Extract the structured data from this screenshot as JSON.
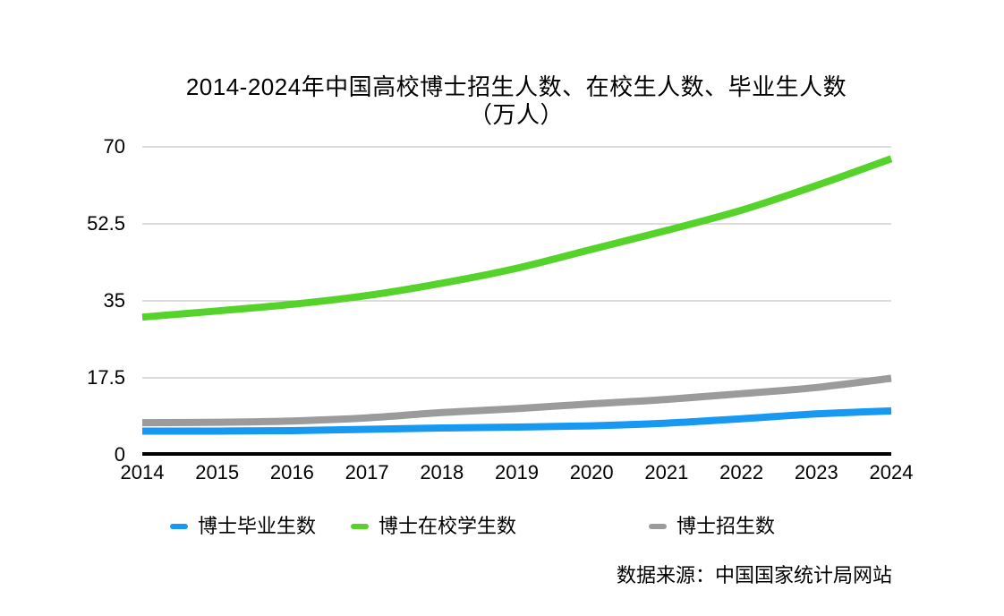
{
  "chart_data": {
    "type": "line",
    "title": "2014-2024年中国高校博士招生人数、在校生人数、毕业生人数",
    "subtitle": "（万人）",
    "x": [
      "2014",
      "2015",
      "2016",
      "2017",
      "2018",
      "2019",
      "2020",
      "2021",
      "2022",
      "2023",
      "2024"
    ],
    "xlabel": "",
    "ylabel": "",
    "ylim": [
      0,
      70
    ],
    "yticks": [
      70,
      52.5,
      35,
      17.5,
      0
    ],
    "ytick_labels": [
      "70",
      "52.5",
      "35",
      "17.5",
      "0"
    ],
    "grid": true,
    "legend_position": "bottom",
    "series": [
      {
        "name": "博士毕业生数",
        "color": "#1799F2",
        "values": [
          5.4,
          5.4,
          5.5,
          5.8,
          6.1,
          6.3,
          6.6,
          7.2,
          8.2,
          9.3,
          10.0
        ]
      },
      {
        "name": "博士在校学生数",
        "color": "#55D32B",
        "values": [
          31.3,
          32.7,
          34.2,
          36.2,
          39.0,
          42.4,
          46.7,
          51.0,
          55.6,
          61.2,
          67.3
        ]
      },
      {
        "name": "博士招生数",
        "color": "#9B9B9B",
        "values": [
          7.3,
          7.4,
          7.7,
          8.4,
          9.6,
          10.5,
          11.6,
          12.6,
          13.9,
          15.3,
          17.4
        ]
      }
    ],
    "source": "数据来源：中国国家统计局网站",
    "colors": {
      "grid": "#C8C8C8",
      "axis": "#000000",
      "text": "#000000",
      "background": "#FFFFFF"
    }
  }
}
